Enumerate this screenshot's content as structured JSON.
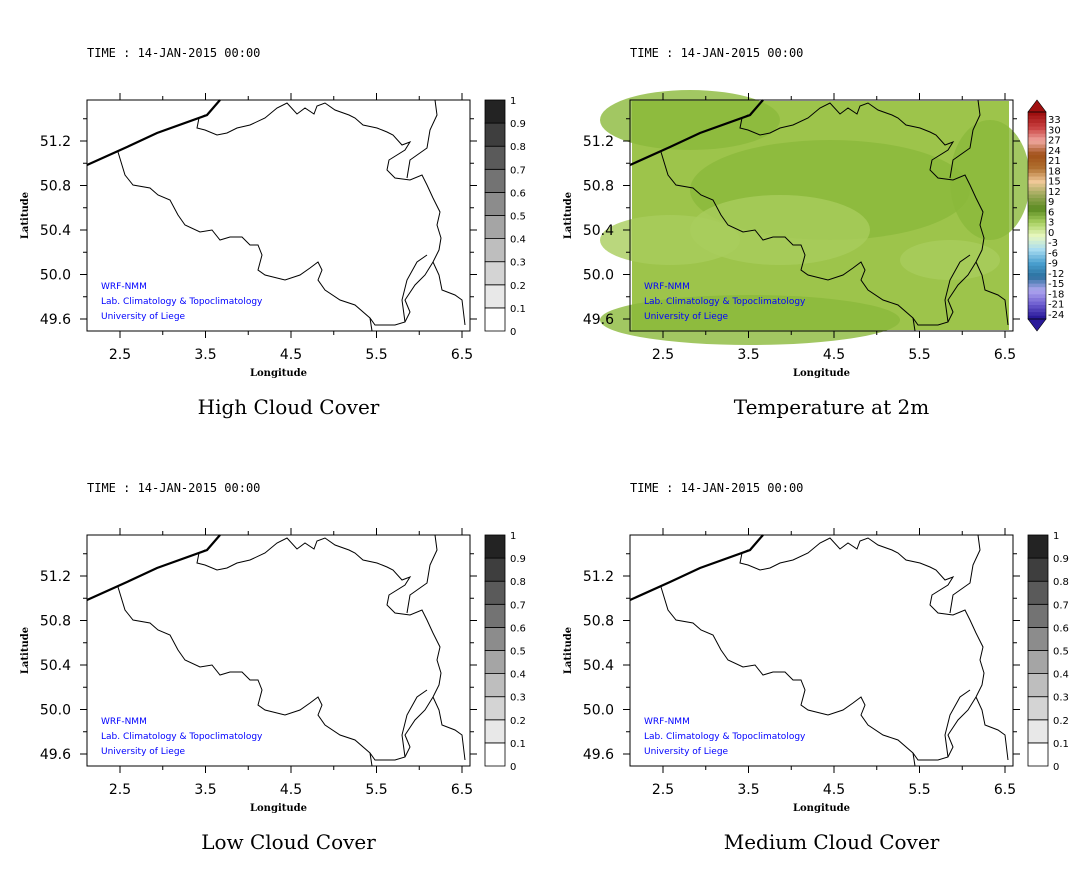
{
  "chart_data": [
    {
      "type": "heatmap",
      "time_label": "TIME : 14-JAN-2015 00:00",
      "title": "High Cloud Cover",
      "xlabel": "Longitude",
      "ylabel": "Latitude",
      "xticks": [
        "2.5",
        "3.5",
        "4.5",
        "5.5",
        "6.5"
      ],
      "yticks": [
        "51.2",
        "50.8",
        "50.4",
        "50.0",
        "49.6"
      ],
      "xlim": [
        2.11,
        6.59
      ],
      "ylim": [
        49.49,
        51.57
      ],
      "colorbar": {
        "kind": "gray",
        "labels": [
          "0",
          "0.1",
          "0.2",
          "0.3",
          "0.4",
          "0.5",
          "0.6",
          "0.7",
          "0.8",
          "0.9",
          "1"
        ]
      },
      "field": "none",
      "credits": [
        "WRF-NMM",
        "Lab. Climatology & Topoclimatology",
        "University of Liege"
      ]
    },
    {
      "type": "heatmap",
      "time_label": "TIME : 14-JAN-2015 00:00",
      "title": "Temperature at 2m",
      "xlabel": "Longitude",
      "ylabel": "Latitude",
      "xticks": [
        "2.5",
        "3.5",
        "4.5",
        "5.5",
        "6.5"
      ],
      "yticks": [
        "51.2",
        "50.8",
        "50.4",
        "50.0",
        "49.6"
      ],
      "xlim": [
        2.11,
        6.59
      ],
      "ylim": [
        49.49,
        51.57
      ],
      "colorbar": {
        "kind": "temp",
        "labels": [
          "33",
          "30",
          "27",
          "24",
          "21",
          "18",
          "15",
          "12",
          "9",
          "6",
          "3",
          "0",
          "-3",
          "-6",
          "-9",
          "-12",
          "-15",
          "-18",
          "-21",
          "-24"
        ]
      },
      "field": "temperature ~3-9",
      "credits": [
        "WRF-NMM",
        "Lab. Climatology & Topoclimatology",
        "University of Liege"
      ]
    },
    {
      "type": "heatmap",
      "time_label": "TIME : 14-JAN-2015 00:00",
      "title": "Low Cloud Cover",
      "xlabel": "Longitude",
      "ylabel": "Latitude",
      "xticks": [
        "2.5",
        "3.5",
        "4.5",
        "5.5",
        "6.5"
      ],
      "yticks": [
        "51.2",
        "50.8",
        "50.4",
        "50.0",
        "49.6"
      ],
      "xlim": [
        2.11,
        6.59
      ],
      "ylim": [
        49.49,
        51.57
      ],
      "colorbar": {
        "kind": "gray",
        "labels": [
          "0",
          "0.1",
          "0.2",
          "0.3",
          "0.4",
          "0.5",
          "0.6",
          "0.7",
          "0.8",
          "0.9",
          "1"
        ]
      },
      "field": "none",
      "credits": [
        "WRF-NMM",
        "Lab. Climatology & Topoclimatology",
        "University of Liege"
      ]
    },
    {
      "type": "heatmap",
      "time_label": "TIME : 14-JAN-2015 00:00",
      "title": "Medium Cloud Cover",
      "xlabel": "Longitude",
      "ylabel": "Latitude",
      "xticks": [
        "2.5",
        "3.5",
        "4.5",
        "5.5",
        "6.5"
      ],
      "yticks": [
        "51.2",
        "50.8",
        "50.4",
        "50.0",
        "49.6"
      ],
      "xlim": [
        2.11,
        6.59
      ],
      "ylim": [
        49.49,
        51.57
      ],
      "colorbar": {
        "kind": "gray",
        "labels": [
          "0",
          "0.1",
          "0.2",
          "0.3",
          "0.4",
          "0.5",
          "0.6",
          "0.7",
          "0.8",
          "0.9",
          "1"
        ]
      },
      "field": "none",
      "credits": [
        "WRF-NMM",
        "Lab. Climatology & Topoclimatology",
        "University of Liege"
      ]
    }
  ],
  "colors": {
    "credit_text": "#0000ff",
    "field_base": "#9dc44b",
    "field_light": "#a9cd5c",
    "field_dark": "#8bb93b",
    "temp_anchors": [
      "#2a1a9a",
      "#6f5fd0",
      "#b0a8f0",
      "#2a6f9e",
      "#4aa0d0",
      "#a8dcf0",
      "#e8f8c0",
      "#a8d060",
      "#5a8a20",
      "#9aa858",
      "#f0c898",
      "#b07030",
      "#a05018",
      "#f0a8a0",
      "#c84040",
      "#a01010"
    ]
  }
}
